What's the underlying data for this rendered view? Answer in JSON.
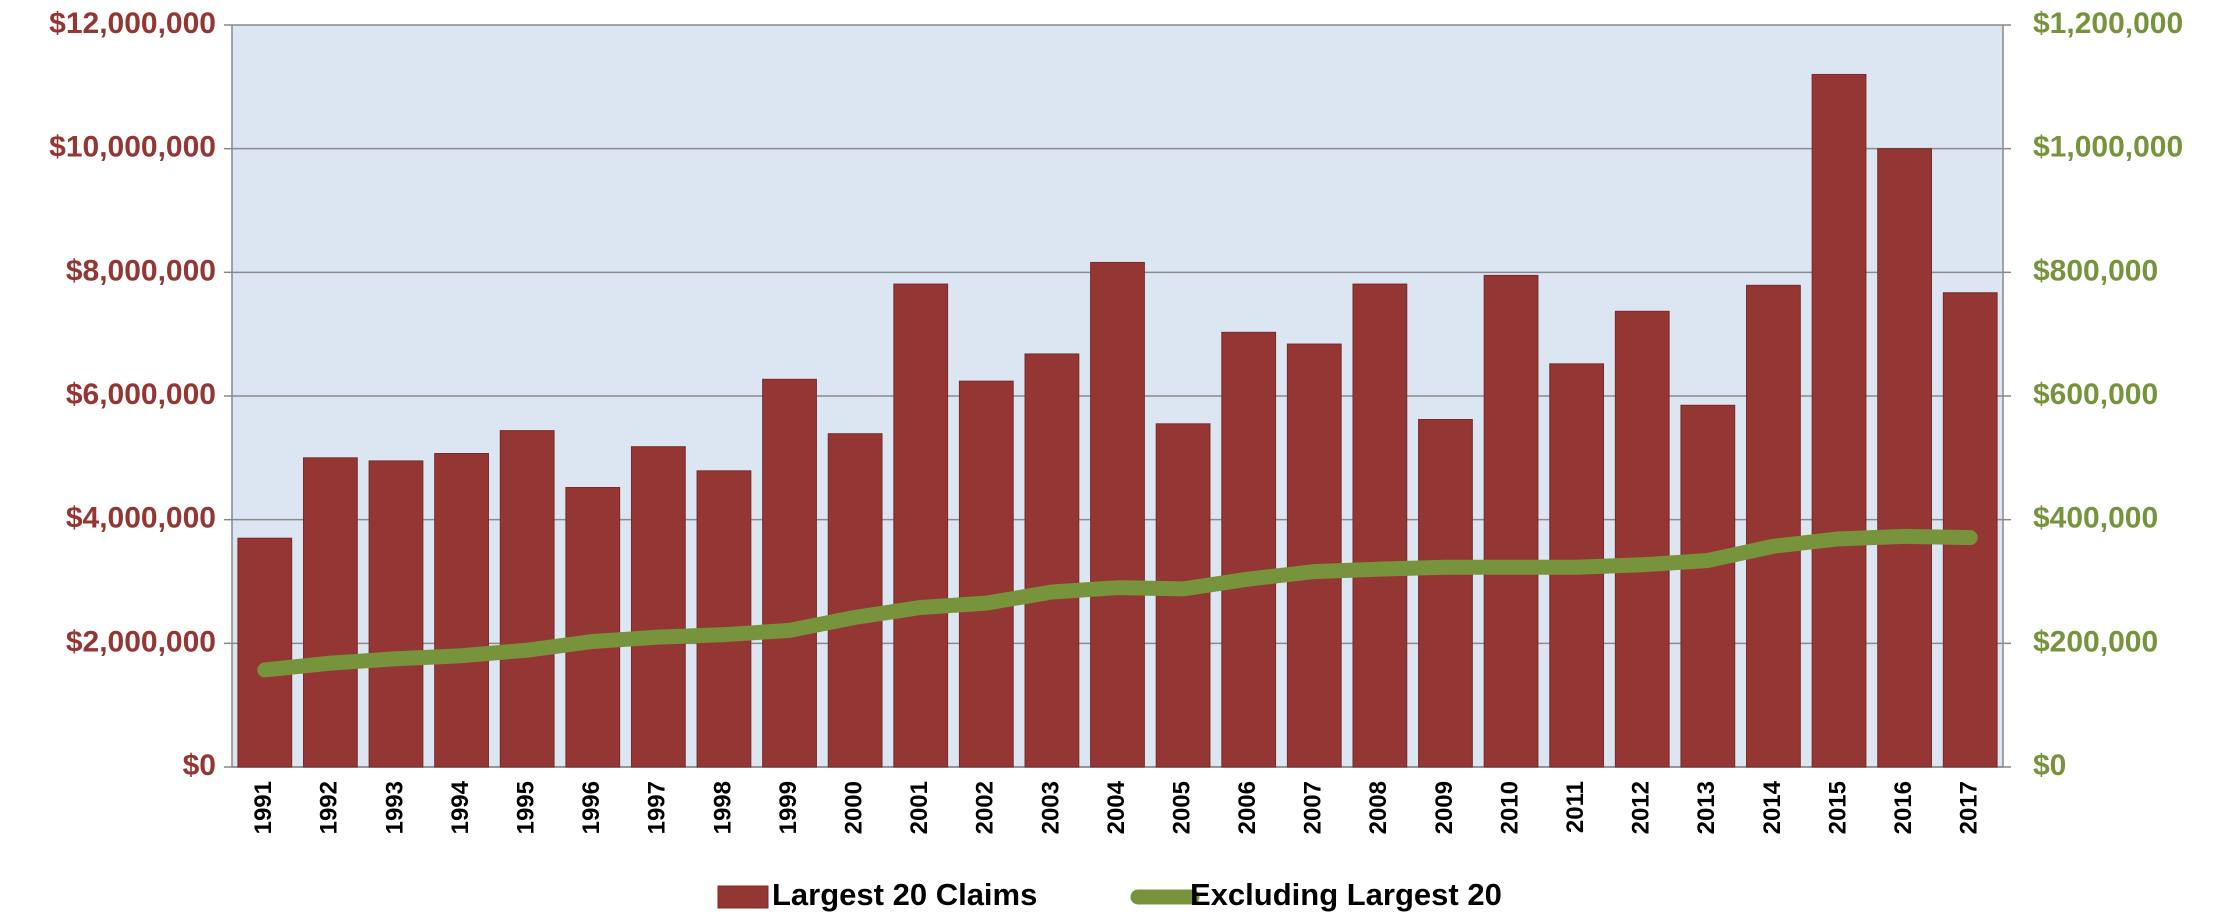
{
  "chart_data": {
    "type": "bar",
    "categories": [
      "1991",
      "1992",
      "1993",
      "1994",
      "1995",
      "1996",
      "1997",
      "1998",
      "1999",
      "2000",
      "2001",
      "2002",
      "2003",
      "2004",
      "2005",
      "2006",
      "2007",
      "2008",
      "2009",
      "2010",
      "2011",
      "2012",
      "2013",
      "2014",
      "2015",
      "2016",
      "2017"
    ],
    "series": [
      {
        "name": "Largest 20 Claims",
        "type": "bar",
        "axis": "y",
        "color": "#943634",
        "values": [
          3700000,
          5000000,
          4950000,
          5070000,
          5440000,
          4520000,
          5180000,
          4790000,
          6270000,
          5390000,
          7810000,
          6240000,
          6680000,
          8160000,
          5550000,
          7030000,
          6840000,
          7810000,
          5620000,
          7950000,
          6520000,
          7370000,
          5850000,
          7790000,
          11200000,
          10000000,
          7670000
        ]
      },
      {
        "name": "Excluding Largest 20",
        "type": "line",
        "axis": "y2",
        "color": "#77933c",
        "values": [
          157000,
          168000,
          175000,
          180000,
          189000,
          203000,
          210000,
          214000,
          221000,
          242000,
          258000,
          265000,
          283000,
          290000,
          288000,
          304000,
          316000,
          320000,
          323000,
          323000,
          323000,
          327000,
          334000,
          357000,
          369000,
          373000,
          371000
        ]
      }
    ],
    "ylim": [
      0,
      12000000
    ],
    "yticks": [
      {
        "value": 0,
        "label": "$0"
      },
      {
        "value": 2000000,
        "label": "$2,000,000"
      },
      {
        "value": 4000000,
        "label": "$4,000,000"
      },
      {
        "value": 6000000,
        "label": "$6,000,000"
      },
      {
        "value": 8000000,
        "label": "$8,000,000"
      },
      {
        "value": 10000000,
        "label": "$10,000,000"
      },
      {
        "value": 12000000,
        "label": "$12,000,000"
      }
    ],
    "y2lim": [
      0,
      1200000
    ],
    "y2ticks": [
      {
        "value": 0,
        "label": "$0"
      },
      {
        "value": 200000,
        "label": "$200,000"
      },
      {
        "value": 400000,
        "label": "$400,000"
      },
      {
        "value": 600000,
        "label": "$600,000"
      },
      {
        "value": 800000,
        "label": "$800,000"
      },
      {
        "value": 1000000,
        "label": "$1,000,000"
      },
      {
        "value": 1200000,
        "label": "$1,200,000"
      }
    ],
    "grid": true,
    "plot_background": "#dce6f2",
    "legend": "bottom"
  }
}
